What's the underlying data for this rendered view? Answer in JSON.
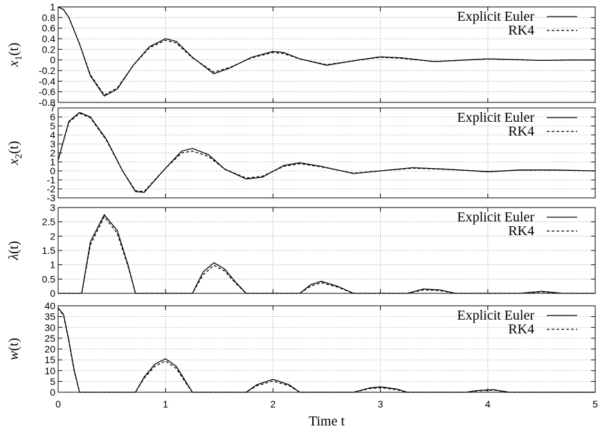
{
  "chart_data": [
    {
      "type": "line",
      "ylabel_var": "x",
      "ylabel_sub": "1",
      "ylabel_arg": "(t)",
      "xlim": [
        0,
        5
      ],
      "ylim": [
        -0.8,
        1
      ],
      "yticks": [
        "1",
        "0.8",
        "0.6",
        "0.4",
        "0.2",
        "0",
        "-0.2",
        "-0.4",
        "-0.6",
        "-0.8"
      ],
      "ytick_values": [
        1,
        0.8,
        0.6,
        0.4,
        0.2,
        0,
        -0.2,
        -0.4,
        -0.6,
        -0.8
      ],
      "grid": true,
      "legend": "top-right",
      "series": [
        {
          "name": "Explicit Euler",
          "style": "solid",
          "x": [
            0,
            0.05,
            0.1,
            0.2,
            0.3,
            0.43,
            0.55,
            0.7,
            0.85,
            1.0,
            1.1,
            1.25,
            1.45,
            1.6,
            1.8,
            2.0,
            2.1,
            2.25,
            2.5,
            2.8,
            3.0,
            3.2,
            3.5,
            3.8,
            4.0,
            4.2,
            4.5,
            4.8,
            5.0
          ],
          "y": [
            1.0,
            0.95,
            0.8,
            0.3,
            -0.3,
            -0.68,
            -0.55,
            -0.1,
            0.25,
            0.4,
            0.35,
            0.05,
            -0.26,
            -0.15,
            0.05,
            0.16,
            0.14,
            0.02,
            -0.1,
            0.0,
            0.06,
            0.04,
            -0.03,
            0.0,
            0.02,
            0.01,
            -0.01,
            0.0,
            0.0
          ]
        },
        {
          "name": "RK4",
          "style": "dashed",
          "x": [
            0,
            0.05,
            0.1,
            0.2,
            0.3,
            0.43,
            0.55,
            0.7,
            0.85,
            1.0,
            1.1,
            1.25,
            1.45,
            1.6,
            1.8,
            2.0,
            2.1,
            2.25,
            2.5,
            2.8,
            3.0,
            3.2,
            3.5,
            3.8,
            4.0,
            4.2,
            4.5,
            4.8,
            5.0
          ],
          "y": [
            1.0,
            0.95,
            0.8,
            0.3,
            -0.28,
            -0.66,
            -0.53,
            -0.1,
            0.23,
            0.37,
            0.32,
            0.04,
            -0.23,
            -0.14,
            0.04,
            0.14,
            0.12,
            0.02,
            -0.09,
            0.0,
            0.05,
            0.03,
            -0.03,
            0.0,
            0.02,
            0.01,
            -0.01,
            0.0,
            0.0
          ]
        }
      ]
    },
    {
      "type": "line",
      "ylabel_var": "x",
      "ylabel_sub": "2",
      "ylabel_arg": "(t)",
      "xlim": [
        0,
        5
      ],
      "ylim": [
        -3,
        7
      ],
      "yticks": [
        "7",
        "6",
        "5",
        "4",
        "3",
        "2",
        "1",
        "0",
        "-1",
        "-2",
        "-3"
      ],
      "ytick_values": [
        7,
        6,
        5,
        4,
        3,
        2,
        1,
        0,
        -1,
        -2,
        -3
      ],
      "grid": true,
      "legend": "top-right",
      "series": [
        {
          "name": "Explicit Euler",
          "style": "solid",
          "x": [
            0,
            0.1,
            0.2,
            0.3,
            0.45,
            0.6,
            0.72,
            0.8,
            1.0,
            1.15,
            1.25,
            1.4,
            1.55,
            1.75,
            1.9,
            2.1,
            2.25,
            2.45,
            2.75,
            3.0,
            3.3,
            3.6,
            4.0,
            4.3,
            4.6,
            5.0
          ],
          "y": [
            1.2,
            5.5,
            6.5,
            6.0,
            3.5,
            0.0,
            -2.3,
            -2.4,
            0.3,
            2.2,
            2.5,
            1.8,
            0.2,
            -0.9,
            -0.7,
            0.6,
            0.9,
            0.5,
            -0.3,
            0.0,
            0.35,
            0.2,
            -0.1,
            0.1,
            0.1,
            0.0
          ]
        },
        {
          "name": "RK4",
          "style": "dashed",
          "x": [
            0,
            0.1,
            0.2,
            0.3,
            0.45,
            0.6,
            0.72,
            0.8,
            1.0,
            1.15,
            1.25,
            1.4,
            1.55,
            1.75,
            1.9,
            2.1,
            2.25,
            2.45,
            2.75,
            3.0,
            3.3,
            3.6,
            4.0,
            4.3,
            4.6,
            5.0
          ],
          "y": [
            1.2,
            5.4,
            6.4,
            5.9,
            3.4,
            0.0,
            -2.2,
            -2.3,
            0.3,
            2.0,
            2.2,
            1.6,
            0.2,
            -0.8,
            -0.6,
            0.5,
            0.8,
            0.45,
            -0.25,
            0.0,
            0.3,
            0.18,
            -0.08,
            0.08,
            0.08,
            0.0
          ]
        }
      ]
    },
    {
      "type": "line",
      "ylabel_var": "λ",
      "ylabel_sub": "",
      "ylabel_arg": "(t)",
      "xlim": [
        0,
        5
      ],
      "ylim": [
        0,
        3
      ],
      "yticks": [
        "3",
        "2.5",
        "2",
        "1.5",
        "1",
        "0.5",
        "0"
      ],
      "ytick_values": [
        3,
        2.5,
        2,
        1.5,
        1,
        0.5,
        0
      ],
      "grid": true,
      "legend": "top-right",
      "series": [
        {
          "name": "Explicit Euler",
          "style": "solid",
          "x": [
            0,
            0.22,
            0.3,
            0.43,
            0.55,
            0.65,
            0.72,
            1.25,
            1.35,
            1.45,
            1.55,
            1.65,
            1.75,
            2.25,
            2.35,
            2.45,
            2.6,
            2.75,
            3.25,
            3.4,
            3.55,
            3.7,
            4.3,
            4.5,
            4.7,
            5.0
          ],
          "y": [
            0,
            0,
            1.8,
            2.75,
            2.2,
            1.0,
            0,
            0,
            0.75,
            1.07,
            0.85,
            0.4,
            0,
            0,
            0.3,
            0.42,
            0.25,
            0,
            0,
            0.15,
            0.12,
            0,
            0,
            0.07,
            0,
            0
          ]
        },
        {
          "name": "RK4",
          "style": "dashed",
          "x": [
            0,
            0.22,
            0.3,
            0.43,
            0.55,
            0.65,
            0.72,
            1.25,
            1.35,
            1.45,
            1.55,
            1.65,
            1.75,
            2.25,
            2.35,
            2.45,
            2.6,
            2.75,
            3.25,
            3.4,
            3.55,
            3.7,
            4.3,
            4.5,
            4.7,
            5.0
          ],
          "y": [
            0,
            0,
            1.7,
            2.68,
            2.1,
            0.95,
            0,
            0,
            0.65,
            0.98,
            0.78,
            0.36,
            0,
            0,
            0.25,
            0.37,
            0.22,
            0,
            0,
            0.12,
            0.1,
            0,
            0,
            0.05,
            0,
            0
          ]
        }
      ]
    },
    {
      "type": "line",
      "ylabel_var": "w",
      "ylabel_sub": "",
      "ylabel_arg": "(t)",
      "xlabel": "Time t",
      "xlim": [
        0,
        5
      ],
      "ylim": [
        0,
        40
      ],
      "xticks": [
        "0",
        "1",
        "2",
        "3",
        "4",
        "5"
      ],
      "xtick_values": [
        0,
        1,
        2,
        3,
        4,
        5
      ],
      "yticks": [
        "40",
        "35",
        "30",
        "25",
        "20",
        "15",
        "10",
        "5",
        "0"
      ],
      "ytick_values": [
        40,
        35,
        30,
        25,
        20,
        15,
        10,
        5,
        0
      ],
      "grid": true,
      "legend": "top-right",
      "series": [
        {
          "name": "Explicit Euler",
          "style": "solid",
          "x": [
            0,
            0.05,
            0.1,
            0.15,
            0.2,
            0.72,
            0.8,
            0.9,
            1.0,
            1.1,
            1.2,
            1.25,
            1.75,
            1.85,
            2.0,
            2.15,
            2.25,
            2.75,
            2.9,
            3.0,
            3.15,
            3.25,
            3.8,
            3.9,
            4.05,
            4.2,
            5.0
          ],
          "y": [
            39,
            36,
            24,
            10,
            0,
            0,
            7,
            13,
            15.5,
            12,
            4,
            0,
            0,
            3.5,
            6,
            3.5,
            0,
            0,
            2,
            2.5,
            1.5,
            0,
            0,
            0.8,
            1.2,
            0,
            0
          ]
        },
        {
          "name": "RK4",
          "style": "dashed",
          "x": [
            0,
            0.05,
            0.1,
            0.15,
            0.2,
            0.72,
            0.8,
            0.9,
            1.0,
            1.1,
            1.2,
            1.25,
            1.75,
            1.85,
            2.0,
            2.15,
            2.25,
            2.75,
            2.9,
            3.0,
            3.15,
            3.25,
            3.8,
            3.9,
            4.05,
            4.2,
            5.0
          ],
          "y": [
            39,
            35.5,
            23.5,
            9.5,
            0,
            0,
            6.5,
            12,
            14.5,
            11,
            3.5,
            0,
            0,
            3,
            5.2,
            3,
            0,
            0,
            1.7,
            2.1,
            1.2,
            0,
            0,
            0.6,
            1.0,
            0,
            0
          ]
        }
      ]
    }
  ]
}
